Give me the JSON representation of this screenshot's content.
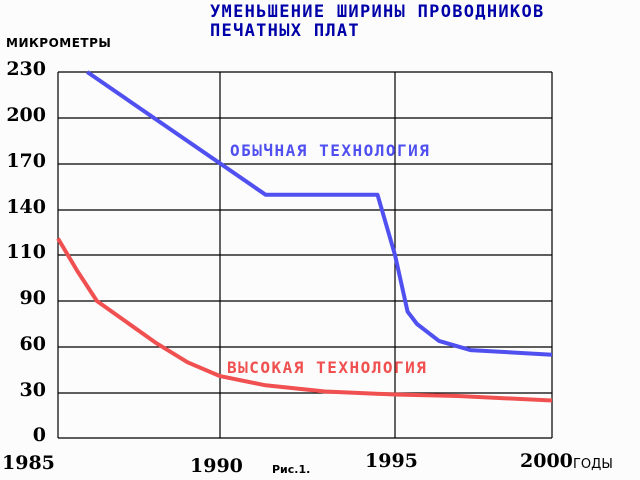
{
  "title_line1": "УМЕНЬШЕНИЕ ШИРИНЫ ПРОВОДНИКОВ",
  "title_line2": "ПЕЧАТНЫХ ПЛАТ",
  "y_axis_label": "МИКРОМЕТРЫ",
  "x_axis_unit": "ГОДЫ",
  "caption": "Рис.1.",
  "y_ticks": [
    "230",
    "200",
    "170",
    "140",
    "110",
    "90",
    "60",
    "30",
    "0"
  ],
  "x_ticks": [
    "1985",
    "1990",
    "1995",
    "2000"
  ],
  "colors": {
    "standard": "#5050f0",
    "advanced": "#f05050",
    "title": "#0000a8",
    "grid": "#000000"
  },
  "chart_data": {
    "type": "line",
    "title": "УМЕНЬШЕНИЕ ШИРИНЫ ПРОВОДНИКОВ ПЕЧАТНЫХ ПЛАТ",
    "xlabel": "ГОДЫ",
    "ylabel": "МИКРОМЕТРЫ",
    "x_ticks": [
      1985,
      1990,
      1995,
      2000
    ],
    "y_ticks": [
      0,
      30,
      60,
      90,
      110,
      140,
      170,
      200,
      230
    ],
    "xlim": [
      1985,
      2000
    ],
    "ylim": [
      0,
      230
    ],
    "grid": true,
    "series": [
      {
        "name": "ОБЫЧНАЯ ТЕХНОЛОГИЯ",
        "color": "#5050f0",
        "x": [
          1985.9,
          1991.3,
          1994.5,
          1995.0,
          1995.4,
          1995.7,
          1996.4,
          1997.4,
          2000
        ],
        "y": [
          230,
          150,
          150,
          110,
          83,
          75,
          64,
          58,
          55
        ]
      },
      {
        "name": "ВЫСОКАЯ ТЕХНОЛОГИЯ",
        "color": "#f05050",
        "x": [
          1985,
          1985.6,
          1986.2,
          1987.0,
          1988.0,
          1989.0,
          1990.0,
          1991.3,
          1993.0,
          1995.0,
          1997.0,
          2000
        ],
        "y": [
          121,
          103,
          90,
          78,
          63,
          50,
          41,
          35,
          31,
          29,
          28,
          25
        ]
      }
    ]
  }
}
